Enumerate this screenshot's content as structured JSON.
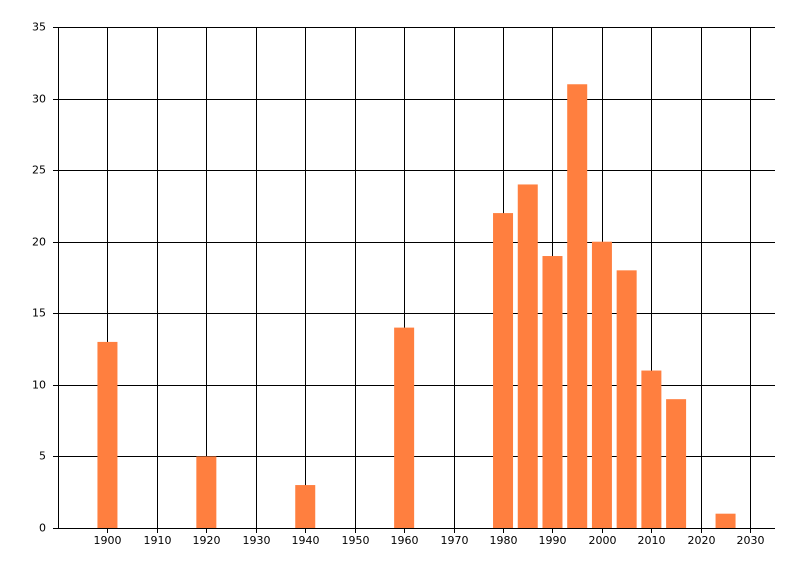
{
  "chart_data": {
    "type": "bar",
    "x": [
      1900,
      1920,
      1940,
      1960,
      1980,
      1985,
      1990,
      1995,
      2000,
      2005,
      2010,
      2015,
      2025
    ],
    "values": [
      13,
      5,
      3,
      14,
      22,
      24,
      19,
      31,
      20,
      18,
      11,
      9,
      1
    ],
    "color": "#ff7f3f",
    "xlim": [
      1890,
      2035
    ],
    "xticks": [
      1900,
      1910,
      1920,
      1930,
      1940,
      1950,
      1960,
      1970,
      1980,
      1990,
      2000,
      2010,
      2020,
      2030
    ],
    "ylim": [
      0,
      35
    ],
    "yticks": [
      0,
      5,
      10,
      15,
      20,
      25,
      30,
      35
    ],
    "grid": true
  }
}
